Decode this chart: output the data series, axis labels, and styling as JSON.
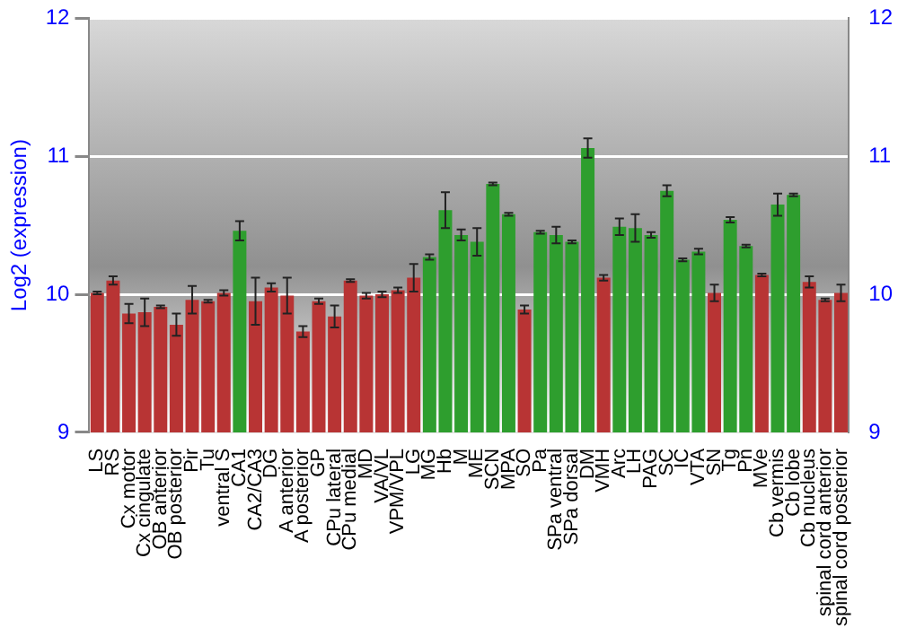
{
  "chart_data": {
    "type": "bar",
    "ylabel": "Log2 (expression)",
    "categories": [
      "LS",
      "RS",
      "Cx motor",
      "Cx cingulate",
      "OB anterior",
      "OB posterior",
      "Pir",
      "Tu",
      "ventral S",
      "CA1",
      "CA2/CA3",
      "DG",
      "A anterior",
      "A posterior",
      "GP",
      "CPu lateral",
      "CPu medial",
      "MD",
      "VA/VL",
      "VPM/VPL",
      "LG",
      "MG",
      "Hb",
      "M",
      "ME",
      "SCN",
      "MPA",
      "SO",
      "Pa",
      "SPa ventral",
      "SPa dorsal",
      "DM",
      "VMH",
      "Arc",
      "LH",
      "PAG",
      "SC",
      "IC",
      "VTA",
      "SN",
      "Tg",
      "Pn",
      "MVe",
      "Cb vermis",
      "Cb lobe",
      "Cb nucleus",
      "spinal cord anterior",
      "spinal cord posterior"
    ],
    "values": [
      10.01,
      10.1,
      9.86,
      9.87,
      9.91,
      9.78,
      9.96,
      9.95,
      10.01,
      10.46,
      9.95,
      10.05,
      9.99,
      9.73,
      9.95,
      9.84,
      10.1,
      9.99,
      10.0,
      10.03,
      10.12,
      10.27,
      10.61,
      10.43,
      10.38,
      10.8,
      10.58,
      9.89,
      10.45,
      10.43,
      10.38,
      11.06,
      10.12,
      10.49,
      10.48,
      10.43,
      10.75,
      10.25,
      10.31,
      10.01,
      10.54,
      10.35,
      10.14,
      10.65,
      10.72,
      10.09,
      9.96,
      10.01
    ],
    "errors": [
      0.01,
      0.03,
      0.07,
      0.1,
      0.01,
      0.08,
      0.1,
      0.01,
      0.02,
      0.07,
      0.17,
      0.03,
      0.13,
      0.04,
      0.02,
      0.08,
      0.01,
      0.02,
      0.02,
      0.02,
      0.1,
      0.02,
      0.13,
      0.04,
      0.1,
      0.01,
      0.01,
      0.03,
      0.01,
      0.06,
      0.01,
      0.07,
      0.02,
      0.06,
      0.1,
      0.02,
      0.04,
      0.01,
      0.02,
      0.06,
      0.02,
      0.01,
      0.01,
      0.08,
      0.01,
      0.04,
      0.01,
      0.06
    ],
    "colors": [
      "#b83434",
      "#b83434",
      "#b83434",
      "#b83434",
      "#b83434",
      "#b83434",
      "#b83434",
      "#b83434",
      "#b83434",
      "#2e9e2e",
      "#b83434",
      "#b83434",
      "#b83434",
      "#b83434",
      "#b83434",
      "#b83434",
      "#b83434",
      "#b83434",
      "#b83434",
      "#b83434",
      "#b83434",
      "#2e9e2e",
      "#2e9e2e",
      "#2e9e2e",
      "#2e9e2e",
      "#2e9e2e",
      "#2e9e2e",
      "#b83434",
      "#2e9e2e",
      "#2e9e2e",
      "#2e9e2e",
      "#2e9e2e",
      "#b83434",
      "#2e9e2e",
      "#2e9e2e",
      "#2e9e2e",
      "#2e9e2e",
      "#2e9e2e",
      "#2e9e2e",
      "#b83434",
      "#2e9e2e",
      "#2e9e2e",
      "#b83434",
      "#2e9e2e",
      "#2e9e2e",
      "#b83434",
      "#b83434",
      "#b83434"
    ],
    "ylim": [
      9,
      12
    ],
    "yticks": [
      9,
      10,
      11,
      12
    ],
    "y2lim": [
      9,
      12
    ],
    "y2ticks": [
      9,
      10,
      11,
      12
    ],
    "grid": "y",
    "legend": false
  }
}
